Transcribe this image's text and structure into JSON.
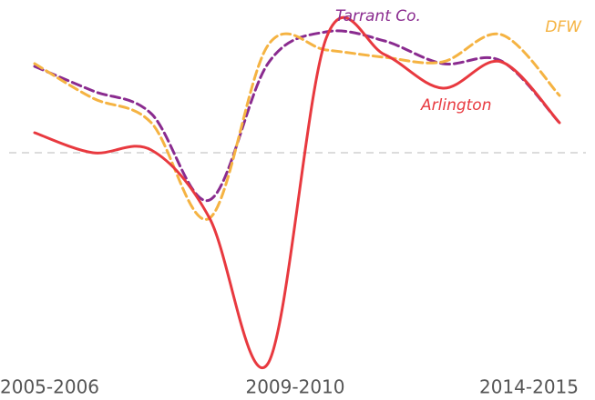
{
  "chart_data": {
    "type": "line",
    "categories": [
      "2005-2006",
      null,
      null,
      null,
      "2009-2010",
      null,
      null,
      null,
      null,
      "2014-2015"
    ],
    "ylim": [
      -24,
      15
    ],
    "baseline": 0,
    "series": [
      {
        "name": "Arlington",
        "color": "#e8393f",
        "dashed": false,
        "values": [
          2.2,
          0,
          0.3,
          -7.2,
          -23.2,
          12.6,
          10.8,
          7.1,
          10,
          3.3
        ]
      },
      {
        "name": "Tarrant Co.",
        "color": "#8a2b8f",
        "dashed": true,
        "values": [
          9.5,
          6.8,
          4.3,
          -5.2,
          9.8,
          13.3,
          12.3,
          9.8,
          10.1,
          3.3
        ]
      },
      {
        "name": "DFW",
        "color": "#f5b342",
        "dashed": true,
        "values": [
          9.8,
          6,
          3.3,
          -7.2,
          11.8,
          11.3,
          10.5,
          10,
          13,
          6.3
        ]
      }
    ]
  }
}
